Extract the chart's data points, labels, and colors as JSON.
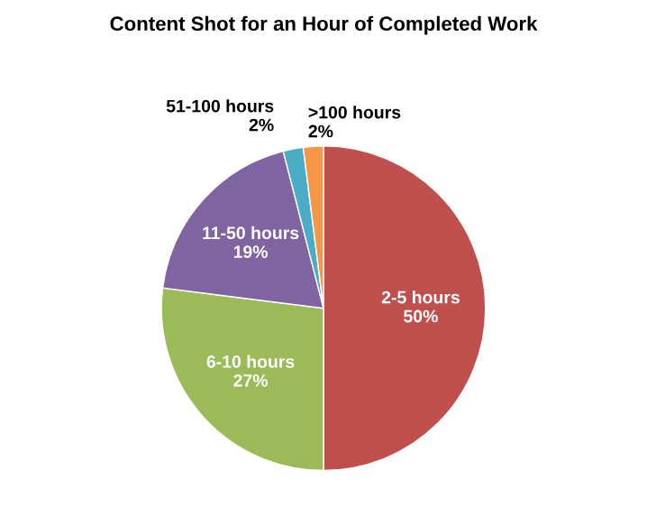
{
  "chart_data": {
    "type": "pie",
    "title": "Content Shot for an Hour of Completed Work",
    "categories": [
      "2-5 hours",
      "6-10 hours",
      "11-50 hours",
      "51-100 hours",
      ">100 hours"
    ],
    "values": [
      50,
      27,
      19,
      2,
      2
    ],
    "colors": [
      "#c0504d",
      "#9bbb59",
      "#8064a2",
      "#4bacc6",
      "#f79646"
    ],
    "value_labels": [
      "50%",
      "27%",
      "19%",
      "2%",
      "2%"
    ],
    "legend": false
  }
}
